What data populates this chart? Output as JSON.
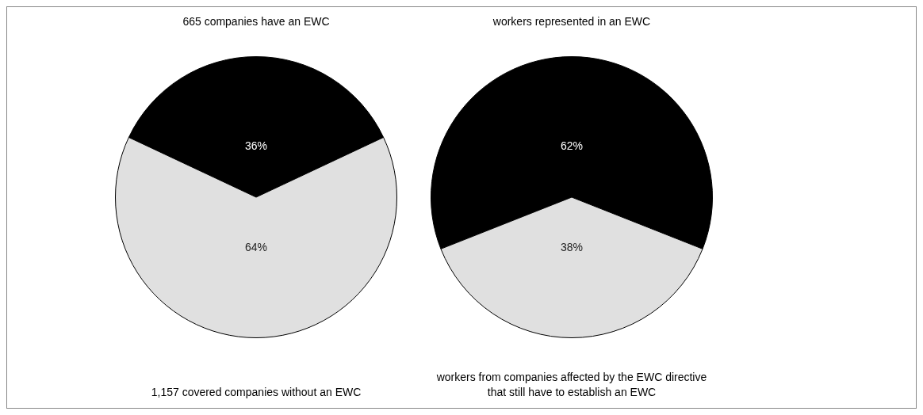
{
  "chart_data": [
    {
      "type": "pie",
      "categories": [
        "665 companies have an EWC",
        "1,157 covered companies without an EWC"
      ],
      "values": [
        36,
        64
      ],
      "value_labels": [
        "36%",
        "64%"
      ],
      "colors": [
        "#000000",
        "#e0e0e0"
      ],
      "legend": false
    },
    {
      "type": "pie",
      "categories": [
        "workers represented in an EWC",
        "workers from companies affected by the EWC directive that still have to establish an EWC"
      ],
      "values": [
        62,
        38
      ],
      "value_labels": [
        "62%",
        "38%"
      ],
      "colors": [
        "#000000",
        "#e0e0e0"
      ],
      "legend": false
    }
  ]
}
